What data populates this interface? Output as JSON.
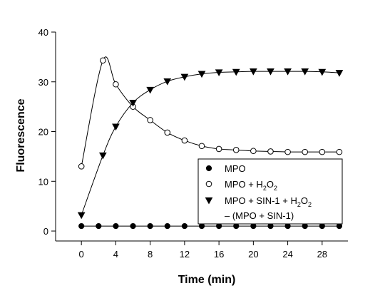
{
  "chart_data": {
    "type": "line",
    "xlabel": "Time (min)",
    "ylabel": "Fluorescence",
    "xlim": [
      -3,
      31
    ],
    "ylim": [
      -2,
      40
    ],
    "xticks": [
      0,
      4,
      8,
      12,
      16,
      20,
      24,
      28
    ],
    "yticks": [
      0,
      10,
      20,
      30,
      40
    ],
    "grid": false,
    "legend_placement": "center-right",
    "series": [
      {
        "name": "MPO",
        "marker": "filled-circle",
        "x": [
          0,
          2,
          4,
          6,
          8,
          10,
          12,
          14,
          16,
          18,
          20,
          22,
          24,
          26,
          28,
          30
        ],
        "y": [
          1,
          1,
          1,
          1,
          1,
          1,
          1,
          1,
          1,
          1,
          1,
          1,
          1,
          1,
          1,
          1
        ]
      },
      {
        "name": "MPO + H2O2",
        "name_parts": {
          "base": "MPO + H",
          "sub1": "2",
          "mid": "O",
          "sub2": "2"
        },
        "marker": "open-circle",
        "x": [
          0,
          2.5,
          4,
          6,
          8,
          10,
          12,
          14,
          16,
          18,
          20,
          22,
          24,
          26,
          28,
          30
        ],
        "y": [
          13,
          34.3,
          29.5,
          25,
          22.3,
          19.8,
          18.2,
          17.1,
          16.5,
          16.3,
          16.1,
          16,
          15.9,
          15.9,
          15.9,
          15.9
        ]
      },
      {
        "name": "MPO + SIN-1 + H2O2 − (MPO + SIN-1)",
        "name_parts": {
          "base": "MPO + SIN-1 + H",
          "sub1": "2",
          "mid": "O",
          "sub2": "2",
          "line2": "– (MPO + SIN-1)"
        },
        "marker": "filled-triangle-down",
        "x": [
          0,
          2.5,
          4,
          6,
          8,
          10,
          12,
          14,
          16,
          18,
          20,
          22,
          24,
          26,
          28,
          30
        ],
        "y": [
          3.2,
          15.2,
          21,
          25.8,
          28.4,
          30.1,
          31,
          31.6,
          31.9,
          32,
          32.1,
          32.1,
          32.1,
          32.1,
          32,
          31.8
        ]
      }
    ]
  }
}
